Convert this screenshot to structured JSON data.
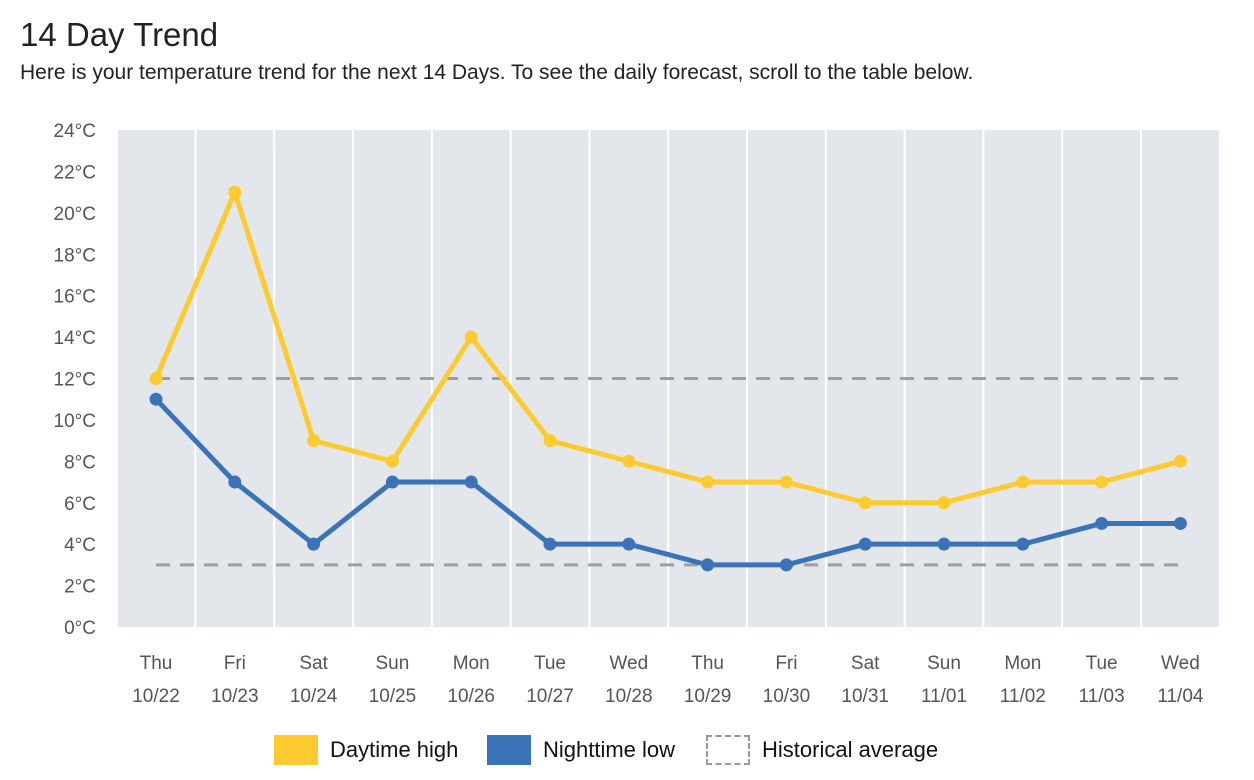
{
  "header": {
    "title": "14 Day Trend",
    "subtitle": "Here is your temperature trend for the next 14 Days. To see the daily forecast, scroll to the table below."
  },
  "chart_data": {
    "type": "line",
    "title": "14 Day Trend",
    "xlabel": "",
    "ylabel": "",
    "ylim": [
      0,
      24
    ],
    "yticks": [
      "0°C",
      "2°C",
      "4°C",
      "6°C",
      "8°C",
      "10°C",
      "12°C",
      "14°C",
      "16°C",
      "18°C",
      "20°C",
      "22°C",
      "24°C"
    ],
    "categories_day": [
      "Thu",
      "Fri",
      "Sat",
      "Sun",
      "Mon",
      "Tue",
      "Wed",
      "Thu",
      "Fri",
      "Sat",
      "Sun",
      "Mon",
      "Tue",
      "Wed"
    ],
    "categories_date": [
      "10/22",
      "10/23",
      "10/24",
      "10/25",
      "10/26",
      "10/27",
      "10/28",
      "10/29",
      "10/30",
      "10/31",
      "11/01",
      "11/02",
      "11/03",
      "11/04"
    ],
    "series": [
      {
        "name": "Daytime high",
        "color": "#fdcb2f",
        "values": [
          12,
          21,
          9,
          8,
          14,
          9,
          8,
          7,
          7,
          6,
          6,
          7,
          7,
          8
        ]
      },
      {
        "name": "Nighttime low",
        "color": "#3b73b9",
        "values": [
          11,
          7,
          4,
          7,
          7,
          4,
          4,
          3,
          3,
          4,
          4,
          4,
          5,
          5
        ]
      }
    ],
    "historical_average": {
      "name": "Historical average",
      "color": "#9e9e9e",
      "high": 12,
      "low": 3
    },
    "grid": true,
    "legend_position": "bottom-center"
  }
}
